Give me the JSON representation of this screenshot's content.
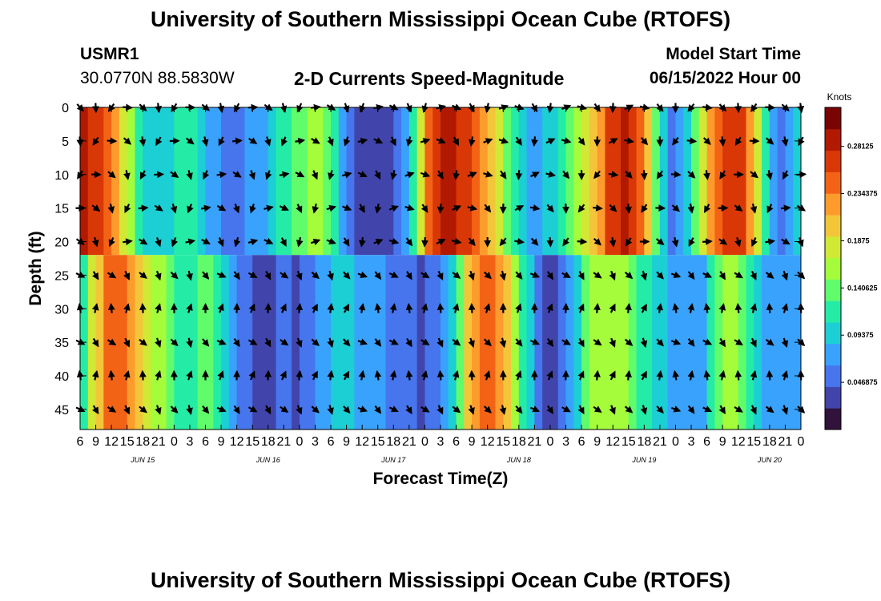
{
  "header": {
    "title": "University of Southern Mississippi Ocean Cube (RTOFS)",
    "station_id": "USMR1",
    "station_coords": "30.0770N  88.5830W",
    "subtitle": "2-D Currents Speed-Magnitude",
    "model_start_label": "Model Start Time",
    "model_start_value": "06/15/2022 Hour 00"
  },
  "footer": {
    "title": "University of Southern Mississippi Ocean Cube (RTOFS)"
  },
  "chart_data": {
    "type": "heatmap",
    "title": "2-D Currents Speed-Magnitude",
    "xlabel": "Forecast Time(Z)",
    "ylabel": "Depth (ft)",
    "x_tick_labels": [
      "6",
      "9",
      "12",
      "15",
      "18",
      "21",
      "0",
      "3",
      "6",
      "9",
      "12",
      "15",
      "18",
      "21",
      "0",
      "3",
      "6",
      "9",
      "12",
      "15",
      "18",
      "21",
      "0",
      "3",
      "6",
      "9",
      "12",
      "15",
      "18",
      "21",
      "0",
      "3",
      "6",
      "9",
      "12",
      "15",
      "18",
      "21",
      "0",
      "3",
      "6",
      "9",
      "12",
      "15",
      "18",
      "21",
      "0"
    ],
    "x_range_hours": [
      6,
      144
    ],
    "day_labels": [
      {
        "label": "JUN 15",
        "hour": 18
      },
      {
        "label": "JUN 16",
        "hour": 42
      },
      {
        "label": "JUN 17",
        "hour": 66
      },
      {
        "label": "JUN 18",
        "hour": 90
      },
      {
        "label": "JUN 19",
        "hour": 114
      },
      {
        "label": "JUN 20",
        "hour": 138
      }
    ],
    "y_ticks": [
      0,
      5,
      10,
      15,
      20,
      25,
      30,
      35,
      40,
      45
    ],
    "y_range": [
      0,
      48
    ],
    "arrow_depths": [
      0,
      5,
      10,
      15,
      20,
      25,
      30,
      35,
      40,
      45
    ],
    "arrow_step_hours": 3,
    "colorbar": {
      "label": "Knots",
      "tick_labels": [
        "0.28125",
        "0.234375",
        "0.1875",
        "0.140625",
        "0.09375",
        "0.046875"
      ],
      "tick_values": [
        0.28125,
        0.234375,
        0.1875,
        0.140625,
        0.09375,
        0.046875
      ],
      "range": [
        0,
        0.32
      ],
      "colors": [
        "#30123b",
        "#4145ab",
        "#4675ed",
        "#39a2fc",
        "#1bcfd4",
        "#24eca6",
        "#61fc6c",
        "#a4fc3b",
        "#d1e834",
        "#f3c63a",
        "#fe9b2d",
        "#f36315",
        "#d93806",
        "#b11901",
        "#7a0402"
      ]
    },
    "fields": [
      {
        "depth_start": 0,
        "depth_end": 22,
        "times": [
          6,
          9,
          12,
          15,
          18,
          21,
          24,
          27,
          30,
          33,
          36,
          39,
          42,
          45,
          48,
          51,
          54,
          57,
          60,
          63,
          66,
          69,
          72,
          75,
          78,
          81,
          84,
          87,
          90,
          93,
          96,
          99,
          102,
          105,
          108,
          111,
          114,
          117,
          120,
          123,
          126,
          129,
          132,
          135,
          138,
          141,
          144
        ],
        "speed": [
          0.28,
          0.27,
          0.25,
          0.17,
          0.11,
          0.09,
          0.1,
          0.13,
          0.09,
          0.06,
          0.05,
          0.07,
          0.09,
          0.12,
          0.14,
          0.16,
          0.13,
          0.07,
          0.03,
          0.02,
          0.04,
          0.08,
          0.22,
          0.28,
          0.28,
          0.26,
          0.22,
          0.16,
          0.1,
          0.08,
          0.09,
          0.12,
          0.16,
          0.22,
          0.27,
          0.28,
          0.24,
          0.1,
          0.05,
          0.12,
          0.2,
          0.26,
          0.27,
          0.22,
          0.08,
          0.05,
          0.12
        ]
      },
      {
        "depth_start": 22,
        "depth_end": 48,
        "times": [
          6,
          9,
          12,
          15,
          18,
          21,
          24,
          27,
          30,
          33,
          36,
          39,
          42,
          45,
          48,
          51,
          54,
          57,
          60,
          63,
          66,
          69,
          72,
          75,
          78,
          81,
          84,
          87,
          90,
          93,
          96,
          99,
          102,
          105,
          108,
          111,
          114,
          117,
          120,
          123,
          126,
          129,
          132,
          135,
          138,
          141,
          144
        ],
        "speed": [
          0.1,
          0.2,
          0.25,
          0.24,
          0.2,
          0.16,
          0.12,
          0.11,
          0.14,
          0.1,
          0.06,
          0.04,
          0.03,
          0.05,
          0.04,
          0.07,
          0.09,
          0.1,
          0.08,
          0.07,
          0.06,
          0.05,
          0.04,
          0.06,
          0.12,
          0.22,
          0.24,
          0.22,
          0.14,
          0.07,
          0.03,
          0.06,
          0.12,
          0.16,
          0.17,
          0.15,
          0.12,
          0.1,
          0.08,
          0.06,
          0.09,
          0.16,
          0.15,
          0.1,
          0.08,
          0.07,
          0.09
        ]
      }
    ]
  }
}
